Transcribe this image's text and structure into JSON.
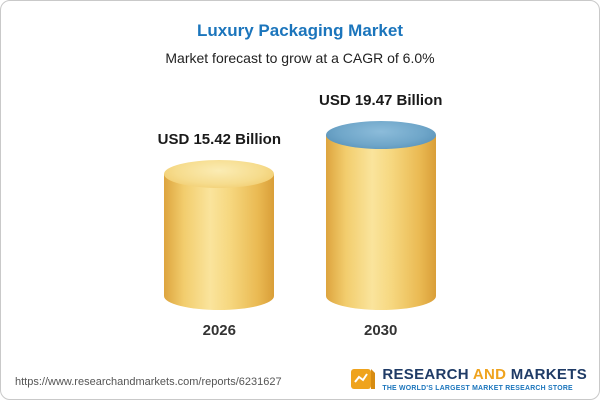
{
  "chart_data": {
    "type": "bar",
    "variant": "3d-cylinder",
    "title": "Luxury Packaging Market",
    "subtitle": "Market forecast to grow at a CAGR of 6.0%",
    "categories": [
      "2026",
      "2030"
    ],
    "values": [
      15.42,
      19.47
    ],
    "value_labels": [
      "USD 15.42 Billion",
      "USD 19.47 Billion"
    ],
    "unit": "USD Billion",
    "cagr": "6.0%",
    "ylim": [
      0,
      20
    ],
    "grid": false,
    "legend": "none",
    "colors": {
      "bar_gold": "#F2CD6D",
      "bar_gold_dark": "#DDA43E",
      "bar_gold_light": "#FAE49C",
      "growth_blue": "#4C87B0",
      "growth_blue_dark": "#336289",
      "growth_blue_light": "#7FB2D3",
      "title_blue": "#1B75BC"
    }
  },
  "footer": {
    "url": "https://www.researchandmarkets.com/reports/6231627",
    "logo": {
      "word1": "RESEARCH",
      "word2": "AND",
      "word3": "MARKETS",
      "tagline": "THE WORLD'S LARGEST MARKET RESEARCH STORE"
    }
  }
}
